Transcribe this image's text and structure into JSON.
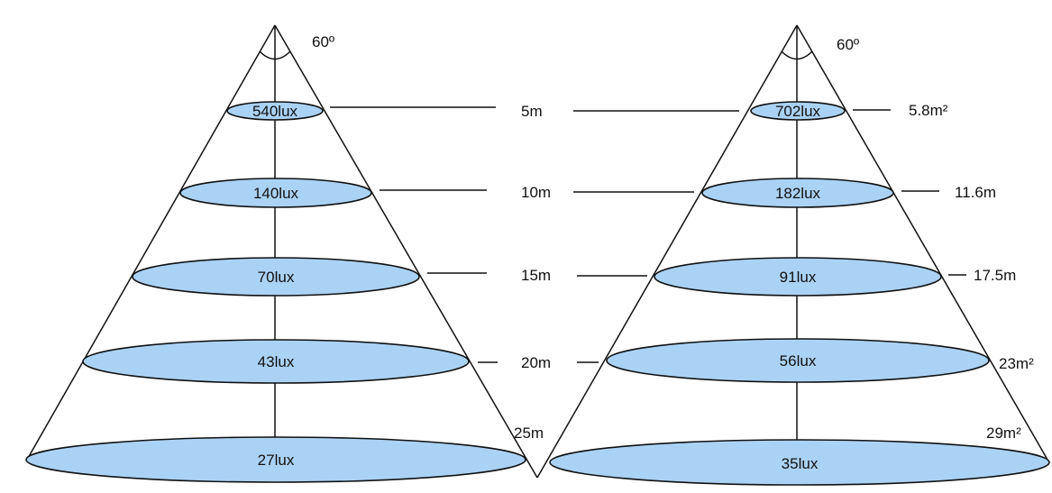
{
  "left_cone": {
    "angle_label": "60º",
    "lux_labels": [
      "540lux",
      "140lux",
      "70lux",
      "43lux",
      "27lux"
    ]
  },
  "distances": [
    "5m",
    "10m",
    "15m",
    "20m",
    "25m"
  ],
  "right_cone": {
    "angle_label": "60º",
    "lux_labels": [
      "702lux",
      "182lux",
      "91lux",
      "56lux",
      "35lux"
    ],
    "area_labels": [
      "5.8m²",
      "11.6m",
      "17.5m",
      "23m²",
      "29m²"
    ]
  },
  "colors": {
    "ellipse_fill": "#aad2f5",
    "line": "#111111"
  }
}
